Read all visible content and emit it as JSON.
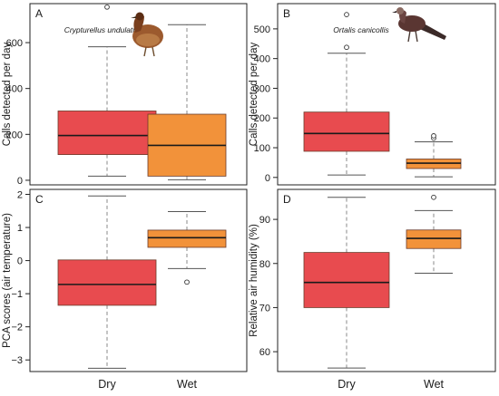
{
  "chart_data": [
    {
      "panel": "A",
      "type": "box",
      "categories": [
        "Dry",
        "Wet"
      ],
      "show_x_ticklabels": false,
      "ylabel": "Calls detected per day",
      "ylim": [
        -20,
        770
      ],
      "yticks": [
        0,
        200,
        400,
        600
      ],
      "annotation": "Crypturellus undulatus",
      "image": "bird-tinamou-illustration",
      "series": [
        {
          "category": "Dry",
          "color": "#e84b4f",
          "min": 18,
          "q1": 112,
          "median": 195,
          "q3": 302,
          "max": 582,
          "outliers": [
            755
          ]
        },
        {
          "category": "Wet",
          "color": "#f2923a",
          "min": 2,
          "q1": 18,
          "median": 152,
          "q3": 288,
          "max": 678,
          "outliers": []
        }
      ]
    },
    {
      "panel": "B",
      "type": "box",
      "categories": [
        "Dry",
        "Wet"
      ],
      "show_x_ticklabels": false,
      "ylabel": "Calls detected per day",
      "ylim": [
        -25,
        585
      ],
      "yticks": [
        0,
        100,
        200,
        300,
        400,
        500
      ],
      "annotation": "Ortalis canicollis",
      "image": "bird-chachalaca-illustration",
      "series": [
        {
          "category": "Dry",
          "color": "#e84b4f",
          "min": 8,
          "q1": 88,
          "median": 148,
          "q3": 220,
          "max": 418,
          "outliers": [
            438,
            548
          ]
        },
        {
          "category": "Wet",
          "color": "#f2923a",
          "min": 2,
          "q1": 30,
          "median": 48,
          "q3": 62,
          "max": 120,
          "outliers": [
            132,
            140
          ]
        }
      ]
    },
    {
      "panel": "C",
      "type": "box",
      "categories": [
        "Dry",
        "Wet"
      ],
      "show_x_ticklabels": true,
      "ylabel": "PCA scores (air temperature)",
      "ylim": [
        -3.35,
        2.15
      ],
      "yticks": [
        -3,
        -2,
        -1,
        0,
        1,
        2
      ],
      "series": [
        {
          "category": "Dry",
          "color": "#e84b4f",
          "min": -3.25,
          "q1": -1.35,
          "median": -0.72,
          "q3": 0.02,
          "max": 1.95,
          "outliers": []
        },
        {
          "category": "Wet",
          "color": "#f2923a",
          "min": -0.24,
          "q1": 0.4,
          "median": 0.69,
          "q3": 0.92,
          "max": 1.48,
          "outliers": [
            -0.65
          ]
        }
      ]
    },
    {
      "panel": "D",
      "type": "box",
      "categories": [
        "Dry",
        "Wet"
      ],
      "show_x_ticklabels": true,
      "ylabel": "Relative air humidity (%)",
      "ylim": [
        55.5,
        96.8
      ],
      "yticks": [
        60,
        70,
        80,
        90
      ],
      "series": [
        {
          "category": "Dry",
          "color": "#e84b4f",
          "min": 56.3,
          "q1": 70,
          "median": 75.7,
          "q3": 82.5,
          "max": 95,
          "outliers": []
        },
        {
          "category": "Wet",
          "color": "#f2923a",
          "min": 77.8,
          "q1": 83.4,
          "median": 85.7,
          "q3": 87.6,
          "max": 92,
          "outliers": [
            95
          ]
        }
      ]
    }
  ]
}
